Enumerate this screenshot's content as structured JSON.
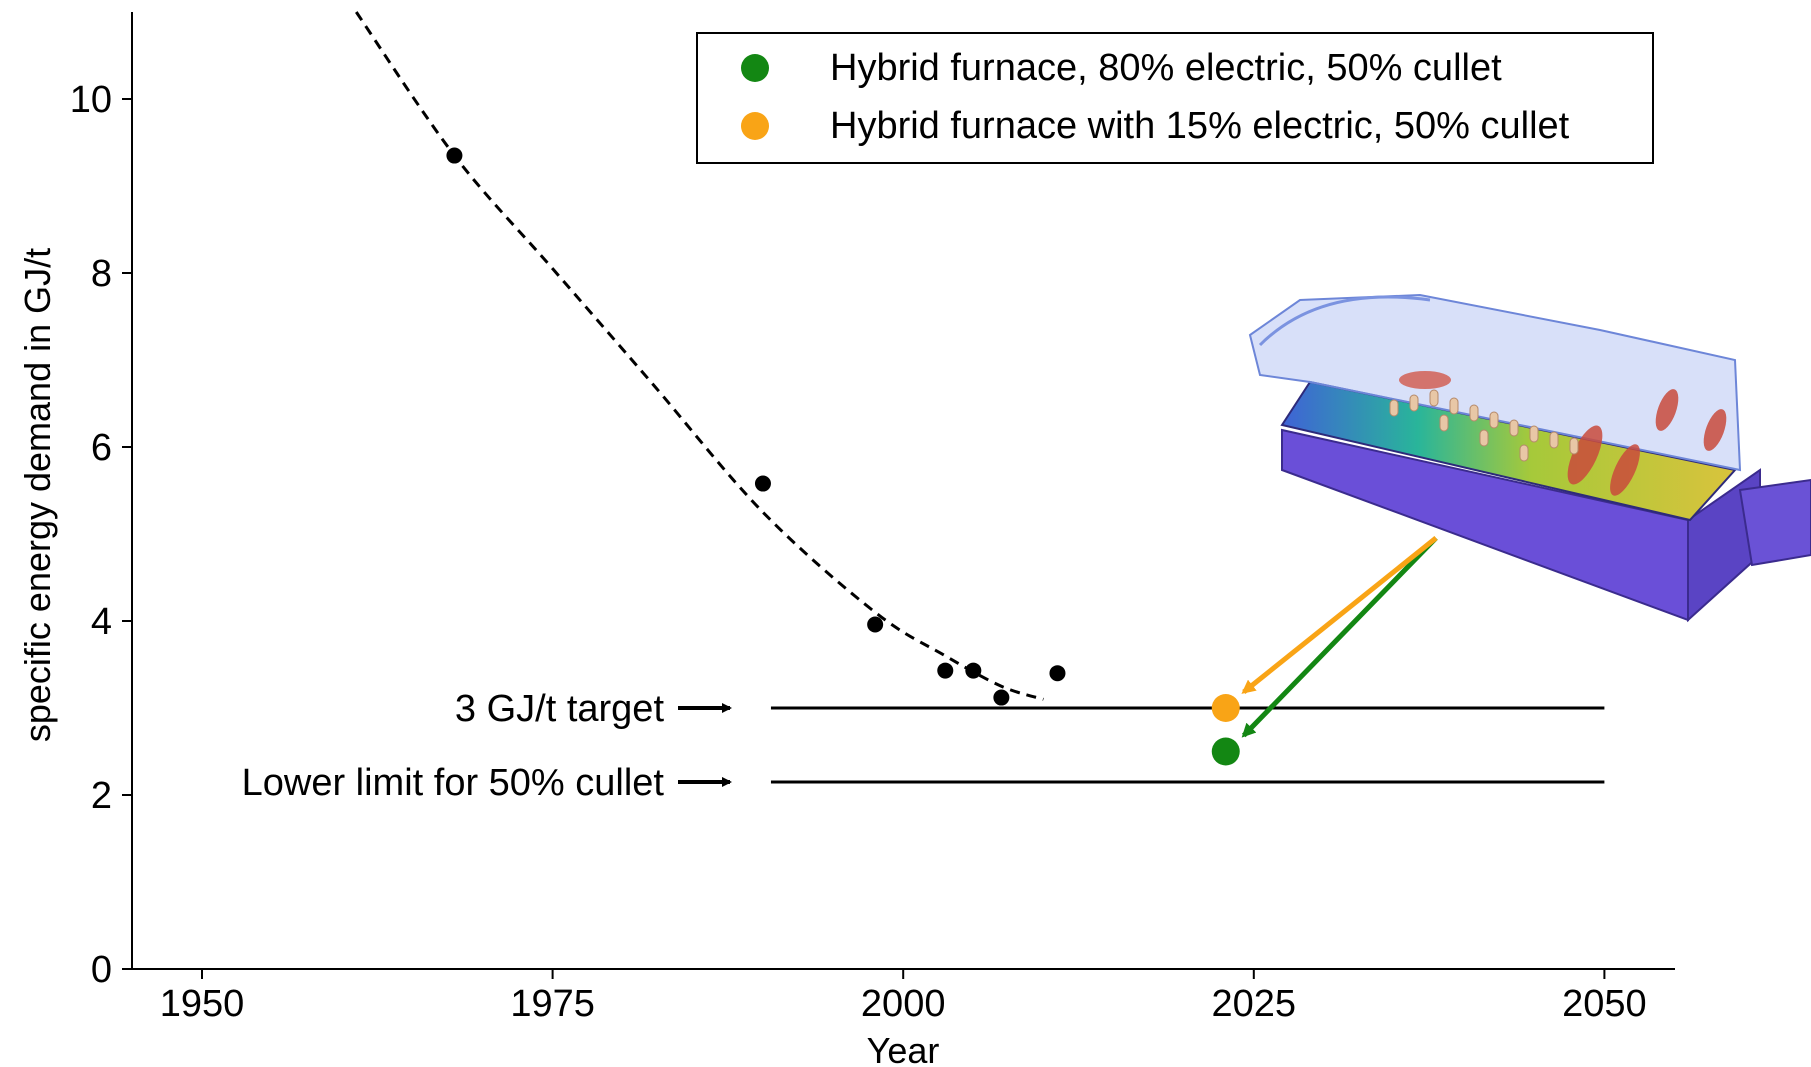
{
  "chart_data": {
    "type": "scatter",
    "xlabel": "Year",
    "ylabel": "specific energy demand in GJ/t",
    "xlim": [
      1945,
      2055
    ],
    "ylim": [
      0,
      11
    ],
    "xticks": [
      1950,
      1975,
      2000,
      2025,
      2050
    ],
    "yticks": [
      0,
      2,
      4,
      6,
      8,
      10
    ],
    "grid": false,
    "legend_position": "top-right",
    "historical": {
      "color": "#000000",
      "x": [
        1968,
        1990,
        1998,
        2003,
        2005,
        2007,
        2011
      ],
      "y": [
        9.35,
        5.58,
        3.96,
        3.43,
        3.43,
        3.12,
        3.4
      ]
    },
    "trend_curve": {
      "style": "dashed",
      "x": [
        1961,
        1968,
        1975,
        1982,
        1990,
        1998,
        2003,
        2007,
        2010
      ],
      "y": [
        11.0,
        9.35,
        8.05,
        6.75,
        5.25,
        4.1,
        3.6,
        3.25,
        3.1
      ]
    },
    "series": [
      {
        "name": "Hybrid furnace, 80% electric, 50% cullet",
        "color": "#138713",
        "x": [
          2023
        ],
        "y": [
          2.5
        ]
      },
      {
        "name": "Hybrid furnace with 15% electric, 50% cullet",
        "color": "#f9a416",
        "x": [
          2023
        ],
        "y": [
          3.0
        ]
      }
    ],
    "reference_lines": [
      {
        "label": "3 GJ/t target",
        "y": 3.0,
        "x_start": 1990,
        "x_end": 2050
      },
      {
        "label": "Lower limit for 50% cullet",
        "y": 2.15,
        "x_start": 1990,
        "x_end": 2050
      }
    ]
  }
}
